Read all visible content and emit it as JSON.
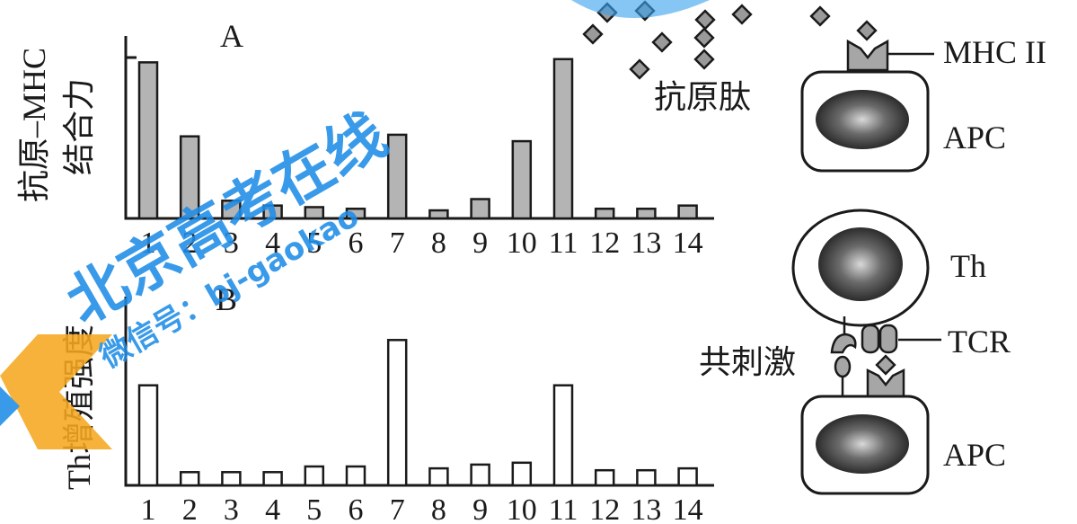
{
  "chart_data": [
    {
      "type": "bar",
      "panel_label": "A",
      "ylabel": "抗原–MHC结合力",
      "ylabel_lines": [
        "抗原–MHC",
        "结合力"
      ],
      "categories": [
        "1",
        "2",
        "3",
        "4",
        "5",
        "6",
        "7",
        "8",
        "9",
        "10",
        "11",
        "12",
        "13",
        "14"
      ],
      "values": [
        97,
        51,
        11,
        8,
        7,
        6,
        52,
        5,
        12,
        48,
        99,
        6,
        6,
        8
      ],
      "ylim": [
        0,
        100
      ]
    },
    {
      "type": "bar",
      "panel_label": "B",
      "ylabel": "Th增殖强度",
      "categories": [
        "1",
        "2",
        "3",
        "4",
        "5",
        "6",
        "7",
        "8",
        "9",
        "10",
        "11",
        "12",
        "13",
        "14"
      ],
      "values": [
        53,
        7,
        7,
        7,
        10,
        10,
        77,
        9,
        11,
        12,
        53,
        8,
        8,
        9
      ],
      "ylim": [
        0,
        100
      ]
    }
  ],
  "diagram": {
    "labels": {
      "mhc": "MHC II",
      "antigen": "抗原肽",
      "apc_top": "APC",
      "th": "Th",
      "tcr": "TCR",
      "costim": "共刺激",
      "apc_bottom": "APC"
    }
  },
  "watermark": {
    "text1": "北京高考在线",
    "text2": "微信号：bj-gaokao",
    "color": "#1e8ce6"
  }
}
